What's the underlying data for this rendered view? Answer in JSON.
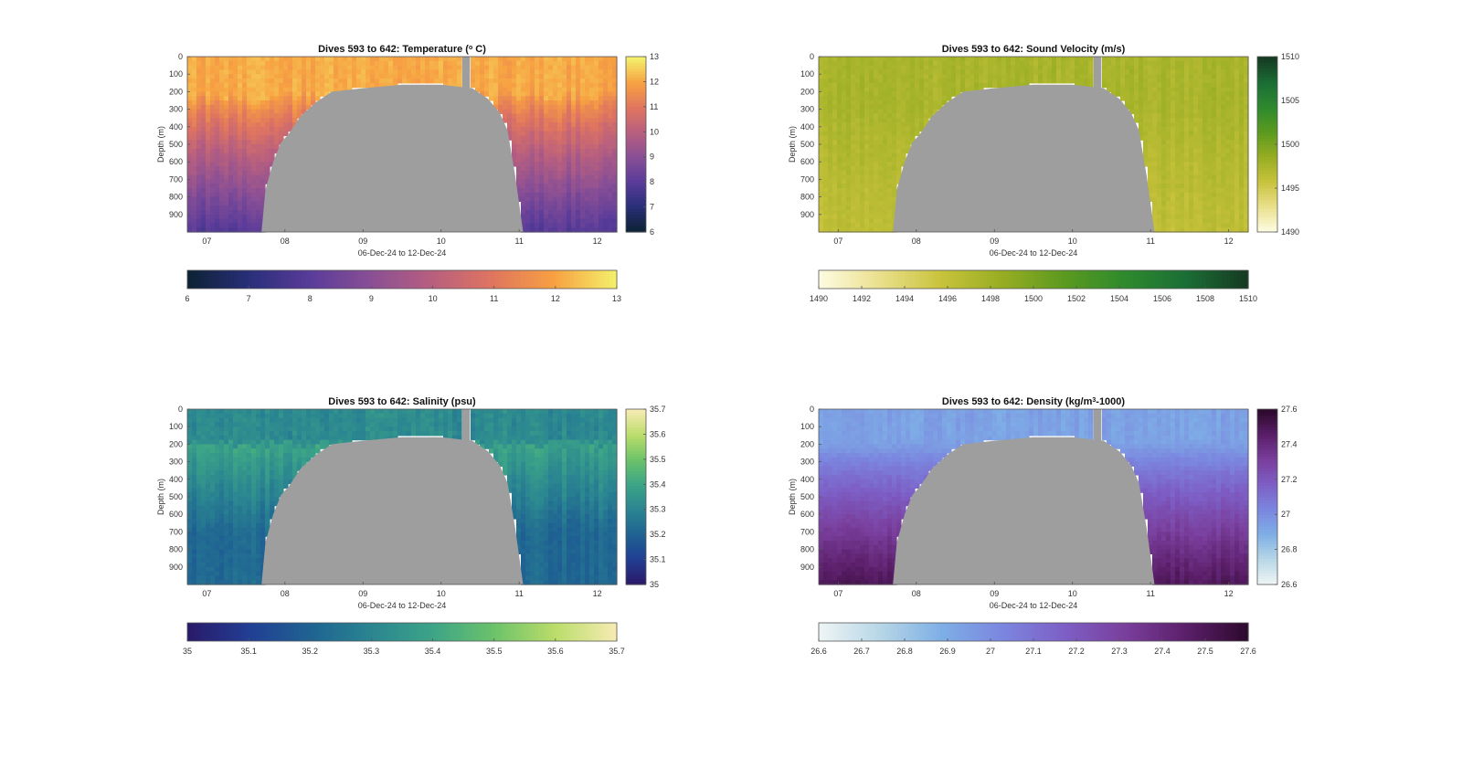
{
  "figure": {
    "background": "#ffffff",
    "nodata_color": "#9e9e9e"
  },
  "chart_data": [
    {
      "id": "temp",
      "type": "heatmap",
      "title_text": "Dives 593 to 642: Temperature (",
      "title_sup": "o",
      "title_after": " C)",
      "xlabel": "06-Dec-24 to 12-Dec-24",
      "ylabel": "Depth (m)",
      "x_ticks": [
        "07",
        "08",
        "09",
        "10",
        "11",
        "12"
      ],
      "x_tick_values": [
        7,
        8,
        9,
        10,
        11,
        12
      ],
      "xlim": [
        6.75,
        12.25
      ],
      "y_ticks": [
        "0",
        "100",
        "200",
        "300",
        "400",
        "500",
        "600",
        "700",
        "800",
        "900"
      ],
      "ylim": [
        0,
        1000
      ],
      "vmin": 6,
      "vmax": 13,
      "side_colorbar_ticks": [
        "6",
        "7",
        "8",
        "9",
        "10",
        "11",
        "12",
        "13"
      ],
      "bottom_colorbar_ticks": [
        "6",
        "7",
        "8",
        "9",
        "10",
        "11",
        "12",
        "13"
      ],
      "colormap": [
        "#0d2236",
        "#2a2f7a",
        "#5a3c9a",
        "#8a4f95",
        "#b85f7f",
        "#e0755f",
        "#f7a142",
        "#f4ef6a"
      ],
      "surface_value": 12.1,
      "deep_value": 7.9,
      "thermocline_depth": 220,
      "variability": 0.45
    },
    {
      "id": "sv",
      "type": "heatmap",
      "title_text": "Dives 593 to 642: Sound Velocity (m/s)",
      "xlabel": "06-Dec-24 to 12-Dec-24",
      "ylabel": "Depth (m)",
      "x_ticks": [
        "07",
        "08",
        "09",
        "10",
        "11",
        "12"
      ],
      "x_tick_values": [
        7,
        8,
        9,
        10,
        11,
        12
      ],
      "xlim": [
        6.75,
        12.25
      ],
      "y_ticks": [
        "0",
        "100",
        "200",
        "300",
        "400",
        "500",
        "600",
        "700",
        "800",
        "900"
      ],
      "ylim": [
        0,
        1000
      ],
      "vmin": 1490,
      "vmax": 1510,
      "side_colorbar_ticks": [
        "1490",
        "1495",
        "1500",
        "1505",
        "1510"
      ],
      "bottom_colorbar_ticks": [
        "1490",
        "1492",
        "1494",
        "1496",
        "1498",
        "1500",
        "1502",
        "1504",
        "1506",
        "1508",
        "1510"
      ],
      "colormap": [
        "#fdfbe0",
        "#e9df8a",
        "#c8c23b",
        "#96ad22",
        "#5c9a1f",
        "#2e8a2e",
        "#1b6e35",
        "#153b22"
      ],
      "surface_value": 1497.5,
      "deep_value": 1496.2,
      "thermocline_depth": 300,
      "variability": 1.1
    },
    {
      "id": "sal",
      "type": "heatmap",
      "title_text": "Dives 593 to 642: Salinity (psu)",
      "xlabel": "06-Dec-24 to 12-Dec-24",
      "ylabel": "Depth (m)",
      "x_ticks": [
        "07",
        "08",
        "09",
        "10",
        "11",
        "12"
      ],
      "x_tick_values": [
        7,
        8,
        9,
        10,
        11,
        12
      ],
      "xlim": [
        6.75,
        12.25
      ],
      "y_ticks": [
        "0",
        "100",
        "200",
        "300",
        "400",
        "500",
        "600",
        "700",
        "800",
        "900"
      ],
      "ylim": [
        0,
        1000
      ],
      "vmin": 35,
      "vmax": 35.7,
      "side_colorbar_ticks": [
        "35",
        "35.1",
        "35.2",
        "35.3",
        "35.4",
        "35.5",
        "35.6",
        "35.7"
      ],
      "bottom_colorbar_ticks": [
        "35",
        "35.1",
        "35.2",
        "35.3",
        "35.4",
        "35.5",
        "35.6",
        "35.7"
      ],
      "colormap": [
        "#2a1a6b",
        "#213f93",
        "#1f6392",
        "#2a8591",
        "#3ca487",
        "#6bc26a",
        "#b9dc6a",
        "#f5ebb0"
      ],
      "surface_value": 35.32,
      "deep_value": 35.22,
      "thermocline_depth": 200,
      "variability": 0.05,
      "midwater_value": 35.4
    },
    {
      "id": "dens",
      "type": "heatmap",
      "title_text": "Dives 593 to 642: Density (kg/m",
      "title_sup": "3",
      "title_after": "-1000)",
      "xlabel": "06-Dec-24 to 12-Dec-24",
      "ylabel": "Depth (m)",
      "x_ticks": [
        "07",
        "08",
        "09",
        "10",
        "11",
        "12"
      ],
      "x_tick_values": [
        7,
        8,
        9,
        10,
        11,
        12
      ],
      "xlim": [
        6.75,
        12.25
      ],
      "y_ticks": [
        "0",
        "100",
        "200",
        "300",
        "400",
        "500",
        "600",
        "700",
        "800",
        "900"
      ],
      "ylim": [
        0,
        1000
      ],
      "vmin": 26.6,
      "vmax": 27.6,
      "side_colorbar_ticks": [
        "26.6",
        "26.8",
        "27",
        "27.2",
        "27.4",
        "27.6"
      ],
      "bottom_colorbar_ticks": [
        "26.6",
        "26.7",
        "26.8",
        "26.9",
        "27",
        "27.1",
        "27.2",
        "27.3",
        "27.4",
        "27.5",
        "27.6"
      ],
      "colormap": [
        "#edf4f4",
        "#b6d6e6",
        "#7eaee6",
        "#7b86df",
        "#7d5fc6",
        "#7a3f9d",
        "#5b1f6a",
        "#2e0a2e"
      ],
      "surface_value": 26.93,
      "deep_value": 27.5,
      "thermocline_depth": 200,
      "variability": 0.06
    }
  ],
  "nodata_mask": {
    "gap_depth_profile": [
      {
        "day": 7.7,
        "depth": 1000
      },
      {
        "day": 7.75,
        "depth": 760
      },
      {
        "day": 7.85,
        "depth": 600
      },
      {
        "day": 7.95,
        "depth": 490
      },
      {
        "day": 8.05,
        "depth": 440
      },
      {
        "day": 8.2,
        "depth": 340
      },
      {
        "day": 8.4,
        "depth": 260
      },
      {
        "day": 8.6,
        "depth": 200
      },
      {
        "day": 9.0,
        "depth": 180
      },
      {
        "day": 9.5,
        "depth": 160
      },
      {
        "day": 10.0,
        "depth": 160
      },
      {
        "day": 10.4,
        "depth": 180
      },
      {
        "day": 10.6,
        "depth": 240
      },
      {
        "day": 10.75,
        "depth": 320
      },
      {
        "day": 10.85,
        "depth": 420
      },
      {
        "day": 10.95,
        "depth": 680
      },
      {
        "day": 11.05,
        "depth": 1000
      }
    ],
    "gap_start_day": 7.72,
    "gap_end_day": 11.04,
    "full_column_gap": [
      10.27,
      10.37
    ]
  }
}
